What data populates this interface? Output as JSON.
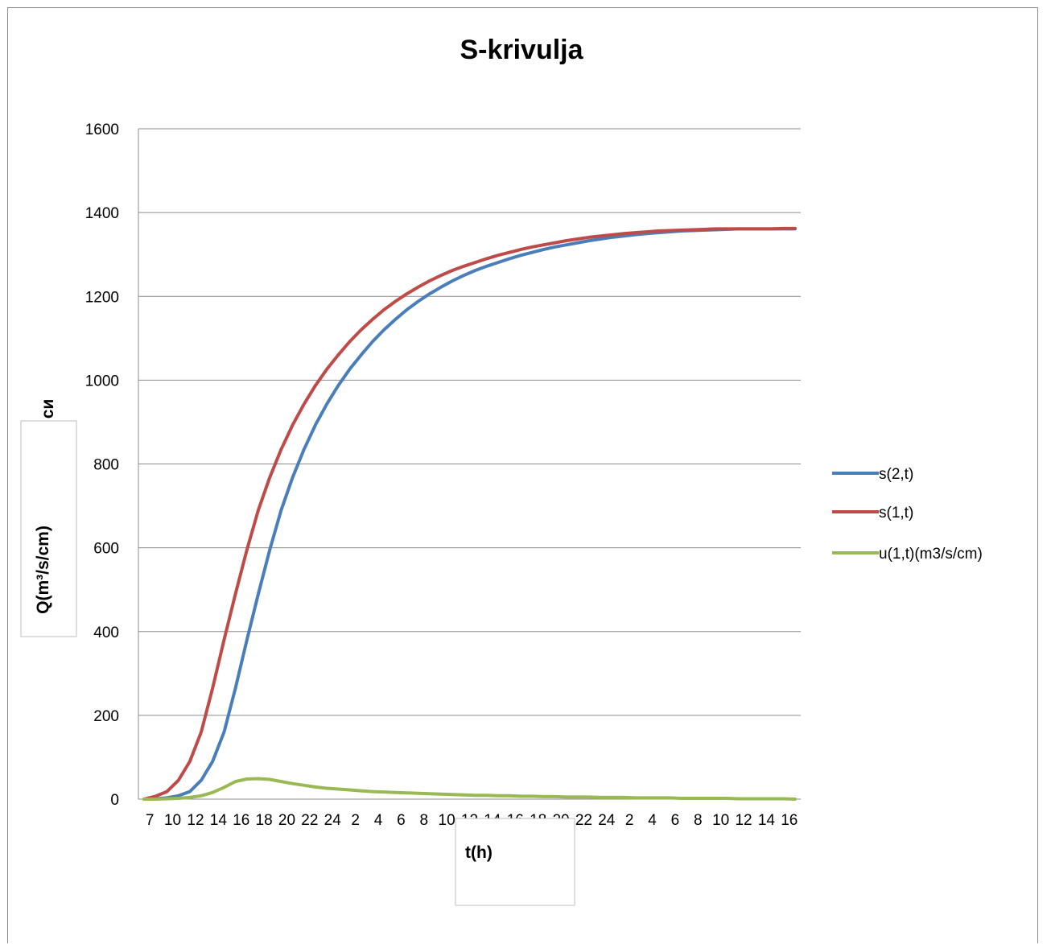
{
  "chart_data": {
    "type": "line",
    "title": "S-krivulja",
    "xlabel": "t(h)",
    "ylabel": "Q(m³/s/cm)",
    "ylabel_fragment": "си",
    "ylim": [
      0,
      1600
    ],
    "yticks": [
      0,
      200,
      400,
      600,
      800,
      1000,
      1200,
      1400,
      1600
    ],
    "grid": true,
    "legend_position": "right",
    "x": [
      "7",
      "8",
      "9",
      "10",
      "11",
      "12",
      "13",
      "14",
      "15",
      "16",
      "17",
      "18",
      "19",
      "20",
      "21",
      "22",
      "23",
      "24",
      "1",
      "2",
      "3",
      "4",
      "5",
      "6",
      "7",
      "8",
      "9",
      "10",
      "11",
      "12",
      "13",
      "14",
      "15",
      "16",
      "17",
      "18",
      "19",
      "20",
      "21",
      "22",
      "23",
      "24",
      "1",
      "2",
      "3",
      "4",
      "5",
      "6",
      "7",
      "8",
      "9",
      "10",
      "11",
      "12",
      "13",
      "14",
      "15",
      "16"
    ],
    "x_tick_labels": [
      "7",
      "10",
      "12",
      "14",
      "16",
      "18",
      "20",
      "22",
      "24",
      "2",
      "4",
      "6",
      "8",
      "10",
      "12",
      "14",
      "16",
      "18",
      "20",
      "22",
      "24",
      "2",
      "4",
      "6",
      "8",
      "10",
      "12",
      "14",
      "16"
    ],
    "series": [
      {
        "name": "s(2,t)",
        "color": "#4a7ebb",
        "values": [
          0,
          1,
          3,
          8,
          18,
          45,
          90,
          160,
          265,
          380,
          490,
          595,
          690,
          768,
          835,
          893,
          943,
          987,
          1026,
          1060,
          1092,
          1120,
          1145,
          1168,
          1188,
          1206,
          1222,
          1237,
          1250,
          1262,
          1272,
          1281,
          1290,
          1298,
          1305,
          1312,
          1318,
          1323,
          1328,
          1333,
          1337,
          1341,
          1344,
          1347,
          1350,
          1352,
          1354,
          1356,
          1357,
          1358,
          1359,
          1360,
          1361,
          1361,
          1361,
          1361,
          1361,
          1361
        ]
      },
      {
        "name": "s(1,t)",
        "color": "#be4b48",
        "values": [
          0,
          7,
          18,
          45,
          90,
          160,
          265,
          380,
          490,
          595,
          690,
          768,
          835,
          893,
          943,
          987,
          1026,
          1060,
          1092,
          1120,
          1145,
          1168,
          1188,
          1206,
          1222,
          1237,
          1250,
          1262,
          1272,
          1281,
          1290,
          1298,
          1305,
          1312,
          1318,
          1323,
          1328,
          1333,
          1337,
          1341,
          1344,
          1347,
          1350,
          1352,
          1354,
          1356,
          1357,
          1358,
          1359,
          1360,
          1361,
          1361,
          1361,
          1361,
          1361,
          1361,
          1362,
          1362
        ]
      },
      {
        "name": "u(1,t)(m3/s/cm)",
        "color": "#98b954",
        "values": [
          0,
          0,
          1,
          2,
          4,
          8,
          16,
          28,
          42,
          48,
          49,
          47,
          42,
          37,
          33,
          29,
          26,
          24,
          22,
          20,
          18,
          17,
          16,
          15,
          14,
          13,
          12,
          11,
          10,
          9,
          9,
          8,
          8,
          7,
          7,
          6,
          6,
          5,
          5,
          5,
          4,
          4,
          4,
          3,
          3,
          3,
          3,
          2,
          2,
          2,
          2,
          2,
          1,
          1,
          1,
          1,
          1,
          0
        ]
      }
    ]
  }
}
